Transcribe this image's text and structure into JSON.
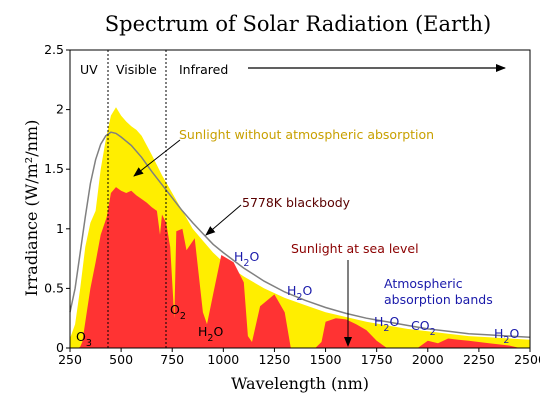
{
  "chart_data": {
    "type": "area",
    "title": "Spectrum of Solar Radiation (Earth)",
    "xlabel": "Wavelength (nm)",
    "ylabel": "Irradiance (W/m²/nm)",
    "xlim": [
      250,
      2500
    ],
    "ylim": [
      0,
      2.5
    ],
    "x_tick_labels": [
      "250",
      "500",
      "750",
      "1000",
      "1250",
      "1500",
      "1750",
      "2000",
      "2250",
      "2500"
    ],
    "y_tick_labels": [
      "0",
      "0.5",
      "1",
      "1.5",
      "2",
      "2.5"
    ],
    "grid": false,
    "regions": [
      {
        "label": "UV",
        "from": 250,
        "to": 380
      },
      {
        "label": "Visible",
        "from": 380,
        "to": 700
      },
      {
        "label": "Infrared",
        "from": 700,
        "to": 2500
      }
    ],
    "series": [
      {
        "name": "Sunlight without atmospheric absorption",
        "color": "#ffee00",
        "x": [
          250,
          275,
          300,
          325,
          350,
          375,
          400,
          425,
          450,
          475,
          500,
          525,
          550,
          575,
          600,
          650,
          700,
          750,
          800,
          850,
          900,
          950,
          1000,
          1100,
          1200,
          1300,
          1400,
          1500,
          1600,
          1700,
          1800,
          1900,
          2000,
          2100,
          2200,
          2300,
          2400,
          2500
        ],
        "values": [
          0.08,
          0.2,
          0.5,
          0.85,
          1.05,
          1.15,
          1.5,
          1.75,
          1.95,
          2.02,
          1.95,
          1.9,
          1.86,
          1.83,
          1.78,
          1.62,
          1.45,
          1.3,
          1.15,
          1.0,
          0.9,
          0.8,
          0.72,
          0.6,
          0.5,
          0.42,
          0.36,
          0.3,
          0.26,
          0.22,
          0.19,
          0.16,
          0.14,
          0.12,
          0.1,
          0.09,
          0.08,
          0.07
        ]
      },
      {
        "name": "5778K blackbody",
        "color": "#808080",
        "x": [
          250,
          275,
          300,
          325,
          350,
          375,
          400,
          425,
          450,
          475,
          500,
          550,
          600,
          650,
          700,
          750,
          800,
          850,
          900,
          950,
          1000,
          1100,
          1200,
          1300,
          1400,
          1500,
          1600,
          1700,
          1800,
          1900,
          2000,
          2100,
          2200,
          2300,
          2400,
          2500
        ],
        "values": [
          0.3,
          0.5,
          0.8,
          1.1,
          1.38,
          1.58,
          1.71,
          1.78,
          1.81,
          1.8,
          1.77,
          1.7,
          1.6,
          1.48,
          1.37,
          1.26,
          1.15,
          1.05,
          0.96,
          0.87,
          0.8,
          0.67,
          0.56,
          0.47,
          0.4,
          0.34,
          0.29,
          0.25,
          0.22,
          0.19,
          0.16,
          0.14,
          0.12,
          0.11,
          0.1,
          0.09
        ]
      },
      {
        "name": "Sunlight at sea level",
        "color": "#ff3333",
        "x": [
          250,
          290,
          300,
          310,
          330,
          350,
          375,
          400,
          430,
          450,
          475,
          500,
          525,
          550,
          575,
          600,
          625,
          650,
          675,
          690,
          700,
          720,
          740,
          760,
          770,
          800,
          820,
          860,
          900,
          920,
          950,
          990,
          1050,
          1100,
          1120,
          1140,
          1180,
          1250,
          1300,
          1330,
          1350,
          1450,
          1480,
          1500,
          1550,
          1600,
          1650,
          1700,
          1750,
          1800,
          1950,
          2000,
          2050,
          2100,
          2150,
          2200,
          2300,
          2400,
          2450,
          2500
        ],
        "values": [
          0,
          0,
          0.01,
          0.05,
          0.28,
          0.5,
          0.72,
          0.95,
          1.1,
          1.3,
          1.35,
          1.32,
          1.3,
          1.32,
          1.28,
          1.25,
          1.22,
          1.18,
          1.15,
          0.95,
          1.12,
          1.05,
          0.85,
          0.25,
          0.98,
          1.0,
          0.82,
          0.92,
          0.3,
          0.2,
          0.45,
          0.78,
          0.72,
          0.55,
          0.1,
          0.05,
          0.35,
          0.45,
          0.3,
          0.0,
          0.0,
          0.0,
          0.05,
          0.22,
          0.25,
          0.24,
          0.2,
          0.15,
          0.06,
          0.0,
          0.0,
          0.06,
          0.04,
          0.08,
          0.07,
          0.06,
          0.04,
          0.02,
          0.0,
          0.0
        ]
      }
    ],
    "annotations": [
      {
        "text": "Sunlight without atmospheric absorption",
        "color": "#c8a000"
      },
      {
        "text": "5778K blackbody",
        "color": "#5a0000"
      },
      {
        "text": "Sunlight at sea level",
        "color": "#8b0000"
      },
      {
        "text": "Atmospheric absorption bands",
        "lines": [
          "Atmospheric",
          "absorption bands"
        ],
        "color": "#1a1aaa"
      }
    ],
    "absorption_labels": [
      {
        "base": "O",
        "sub": "3"
      },
      {
        "base": "O",
        "sub": "2"
      },
      {
        "base": "H",
        "sub": "2",
        "rest": "O"
      },
      {
        "base": "H",
        "sub": "2",
        "rest": "O"
      },
      {
        "base": "H",
        "sub": "2",
        "rest": "O"
      },
      {
        "base": "H",
        "sub": "2",
        "rest": "O"
      },
      {
        "base": "CO",
        "sub": "2"
      },
      {
        "base": "H",
        "sub": "2",
        "rest": "O"
      }
    ]
  }
}
